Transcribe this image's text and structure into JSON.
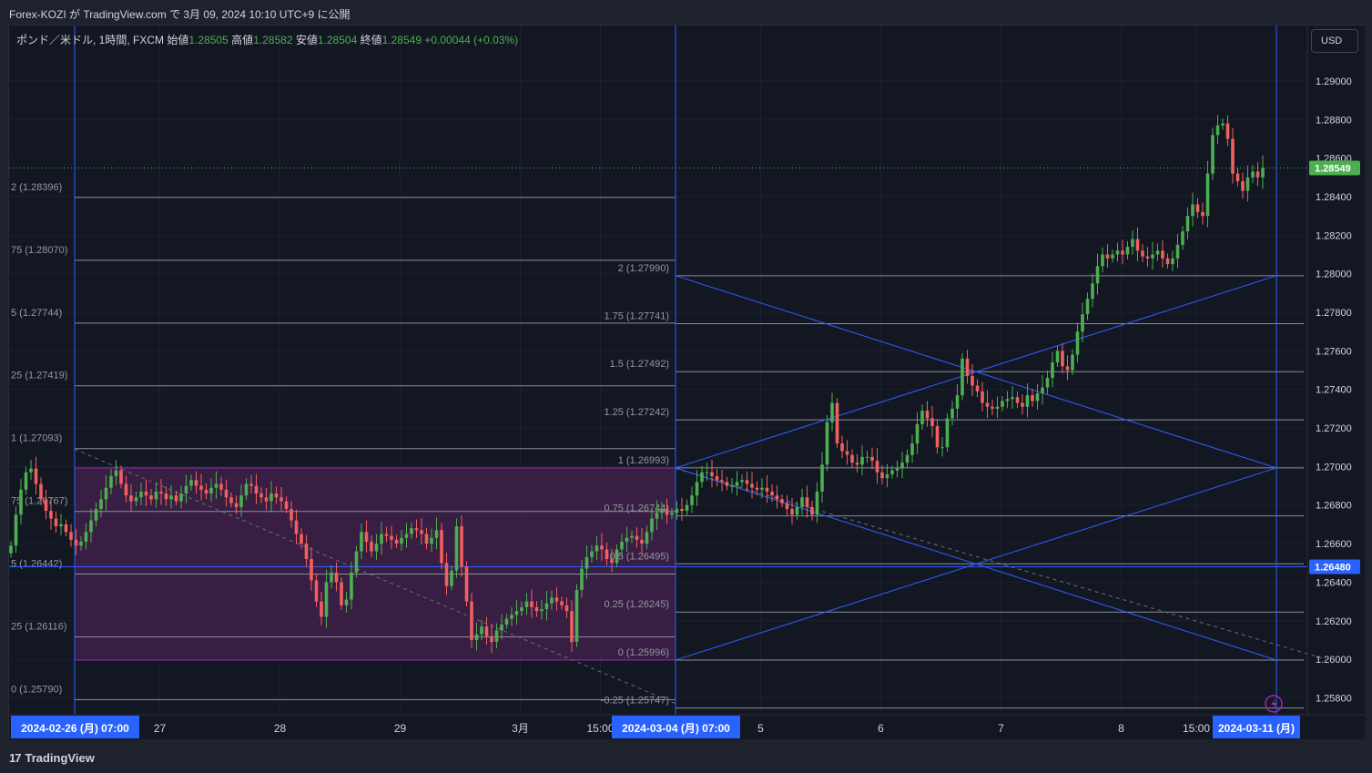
{
  "header": {
    "published_text": "Forex-KOZI が TradingView.com で 3月 09, 2024 10:10 UTC+9 に公開"
  },
  "legend": {
    "symbol": "ポンド／米ドル, 1時間, FXCM",
    "open_label": "始値",
    "open": "1.28505",
    "high_label": "高値",
    "high": "1.28582",
    "low_label": "安値",
    "low": "1.28504",
    "close_label": "終値",
    "close": "1.28549",
    "change": "+0.00044 (+0.03%)"
  },
  "currency_button": "USD",
  "footer": {
    "logo_text": "TradingView",
    "logo_mark": "17"
  },
  "colors": {
    "background": "#131722",
    "up": "#4caf50",
    "down": "#f06060",
    "fib_line": "#8a8e99",
    "trendline": "#2962ff",
    "zone_fill": "#46214e",
    "zone_border": "#9c27b0",
    "price_label": "#4caf50",
    "axis_highlight": "#2962ff"
  },
  "chart_data": {
    "type": "candlestick",
    "symbol": "GBPUSD",
    "timeframe": "1h",
    "x_range": [
      "2024-02-26 07:00",
      "2024-03-11"
    ],
    "ylim": [
      1.2572,
      1.2922
    ],
    "y_ticks": [
      "1.29000",
      "1.28800",
      "1.28600",
      "1.28400",
      "1.28200",
      "1.28000",
      "1.27800",
      "1.27600",
      "1.27400",
      "1.27200",
      "1.27000",
      "1.26800",
      "1.26600",
      "1.26400",
      "1.26200",
      "1.26000",
      "1.25800"
    ],
    "x_ticks": [
      {
        "label": "2024-02-26 (月)  07:00",
        "t": 0,
        "highlight": true
      },
      {
        "label": "27",
        "t": 17
      },
      {
        "label": "28",
        "t": 41
      },
      {
        "label": "29",
        "t": 65
      },
      {
        "label": "3月",
        "t": 89
      },
      {
        "label": "15:00",
        "t": 105
      },
      {
        "label": "2024-03-04 (月)  07:00",
        "t": 120,
        "highlight": true
      },
      {
        "label": "5",
        "t": 137
      },
      {
        "label": "6",
        "t": 161
      },
      {
        "label": "7",
        "t": 185
      },
      {
        "label": "8",
        "t": 209
      },
      {
        "label": "15:00",
        "t": 224
      },
      {
        "label": "2024-03-11 (月)",
        "t": 240,
        "highlight": true
      }
    ],
    "price_labels": [
      {
        "value": 1.28549,
        "text": "1.28549",
        "color": "#4caf50"
      },
      {
        "value": 1.2648,
        "text": "1.26480",
        "color": "#2962ff"
      }
    ],
    "fib_left": {
      "t_start": 0,
      "t_end": 120,
      "levels": [
        {
          "text": "2 (1.28396)",
          "value": 1.28396
        },
        {
          "text": "75 (1.28070)",
          "value": 1.2807
        },
        {
          "text": "5 (1.27744)",
          "value": 1.27744
        },
        {
          "text": "25 (1.27419)",
          "value": 1.27419
        },
        {
          "text": "1 (1.27093)",
          "value": 1.27093
        },
        {
          "text": "75 (1.26767)",
          "value": 1.26767
        },
        {
          "text": "5 (1.26442)",
          "value": 1.26442
        },
        {
          "text": "25 (1.26116)",
          "value": 1.26116
        },
        {
          "text": "0 (1.25790)",
          "value": 1.2579
        }
      ]
    },
    "fib_right": {
      "t_start": 120,
      "t_end": 250,
      "levels": [
        {
          "text": "2 (1.27990)",
          "value": 1.2799
        },
        {
          "text": "1.75 (1.27741)",
          "value": 1.27741
        },
        {
          "text": "1.5 (1.27492)",
          "value": 1.27492
        },
        {
          "text": "1.25 (1.27242)",
          "value": 1.27242
        },
        {
          "text": "1 (1.26993)",
          "value": 1.26993
        },
        {
          "text": "0.75 (1.26744)",
          "value": 1.26744
        },
        {
          "text": "0.5 (1.26495)",
          "value": 1.26495
        },
        {
          "text": "0.25 (1.26245)",
          "value": 1.26245
        },
        {
          "text": "0 (1.25996)",
          "value": 1.25996
        },
        {
          "text": "-0.25 (1.25747)",
          "value": 1.25747
        }
      ]
    },
    "zone": {
      "t_start": 0,
      "t_end": 120,
      "top": 1.26993,
      "bottom": 1.25996
    },
    "horizontal_line": 1.2648,
    "vertical_lines_t": [
      0,
      120,
      240
    ],
    "trendlines": [
      {
        "t1": 120,
        "v1": 1.2799,
        "t2": 240,
        "v2": 1.26993
      },
      {
        "t1": 120,
        "v1": 1.26993,
        "t2": 240,
        "v2": 1.2799
      },
      {
        "t1": 120,
        "v1": 1.26993,
        "t2": 240,
        "v2": 1.25996
      },
      {
        "t1": 120,
        "v1": 1.25996,
        "t2": 240,
        "v2": 1.26993
      }
    ],
    "dashed_lines": [
      {
        "t1": 0,
        "v1": 1.2709,
        "t2": 120,
        "v2": 1.2577
      },
      {
        "t1": 120,
        "v1": 1.2699,
        "t2": 250,
        "v2": 1.26
      }
    ],
    "closes": [
      1.2659,
      1.2675,
      1.2688,
      1.2697,
      1.2699,
      1.2691,
      1.2683,
      1.2677,
      1.2673,
      1.2669,
      1.267,
      1.2666,
      1.2662,
      1.2659,
      1.2661,
      1.2666,
      1.2672,
      1.2678,
      1.2683,
      1.2689,
      1.2695,
      1.2698,
      1.2691,
      1.2685,
      1.2682,
      1.2684,
      1.2687,
      1.2685,
      1.2683,
      1.2687,
      1.2686,
      1.2683,
      1.2685,
      1.2682,
      1.2686,
      1.269,
      1.2693,
      1.269,
      1.2688,
      1.2686,
      1.2689,
      1.2691,
      1.2688,
      1.2684,
      1.2681,
      1.2679,
      1.2685,
      1.2691,
      1.269,
      1.2686,
      1.2684,
      1.2682,
      1.2686,
      1.2684,
      1.2682,
      1.2678,
      1.2672,
      1.2665,
      1.266,
      1.2652,
      1.2641,
      1.263,
      1.2622,
      1.264,
      1.2645,
      1.264,
      1.2628,
      1.2631,
      1.2645,
      1.2656,
      1.2666,
      1.2661,
      1.2656,
      1.266,
      1.2665,
      1.2664,
      1.2662,
      1.266,
      1.2663,
      1.2665,
      1.2668,
      1.2667,
      1.2665,
      1.266,
      1.2663,
      1.2667,
      1.265,
      1.2638,
      1.2646,
      1.2669,
      1.2648,
      1.263,
      1.261,
      1.2613,
      1.2617,
      1.2612,
      1.2609,
      1.2615,
      1.2618,
      1.2621,
      1.2623,
      1.2625,
      1.2627,
      1.263,
      1.2627,
      1.2625,
      1.2626,
      1.2629,
      1.2632,
      1.263,
      1.2628,
      1.2625,
      1.2609,
      1.2636,
      1.2647,
      1.2653,
      1.2656,
      1.2659,
      1.2657,
      1.2652,
      1.265,
      1.2657,
      1.2661,
      1.2663,
      1.2664,
      1.2662,
      1.266,
      1.2666,
      1.2673,
      1.2676,
      1.2678,
      1.2675,
      1.2676,
      1.2678,
      1.2677,
      1.268,
      1.2685,
      1.2692,
      1.2697,
      1.2697,
      1.2695,
      1.2693,
      1.2692,
      1.269,
      1.269,
      1.2692,
      1.2693,
      1.2691,
      1.2689,
      1.2688,
      1.2689,
      1.2687,
      1.2685,
      1.2683,
      1.2681,
      1.2678,
      1.2675,
      1.2679,
      1.2684,
      1.2679,
      1.2675,
      1.2687,
      1.2701,
      1.2723,
      1.2733,
      1.2712,
      1.2708,
      1.2706,
      1.2702,
      1.2701,
      1.2705,
      1.2705,
      1.2703,
      1.2697,
      1.2694,
      1.2696,
      1.2698,
      1.2699,
      1.2702,
      1.2706,
      1.2712,
      1.2722,
      1.2729,
      1.2725,
      1.2721,
      1.271,
      1.271,
      1.2725,
      1.273,
      1.2737,
      1.2756,
      1.2747,
      1.2742,
      1.2739,
      1.2733,
      1.2731,
      1.273,
      1.2731,
      1.2734,
      1.2735,
      1.2736,
      1.2733,
      1.2731,
      1.2737,
      1.2734,
      1.2738,
      1.2741,
      1.2746,
      1.2754,
      1.276,
      1.2752,
      1.275,
      1.2758,
      1.277,
      1.2779,
      1.2787,
      1.2795,
      1.2804,
      1.281,
      1.2808,
      1.281,
      1.2812,
      1.281,
      1.2814,
      1.2818,
      1.2812,
      1.2809,
      1.2808,
      1.281,
      1.2812,
      1.2808,
      1.2805,
      1.2808,
      1.2815,
      1.2822,
      1.283,
      1.2836,
      1.2832,
      1.283,
      1.2852,
      1.2872,
      1.2877,
      1.2878,
      1.287,
      1.2852,
      1.2848,
      1.2843,
      1.285,
      1.2853,
      1.285,
      1.2855
    ]
  }
}
